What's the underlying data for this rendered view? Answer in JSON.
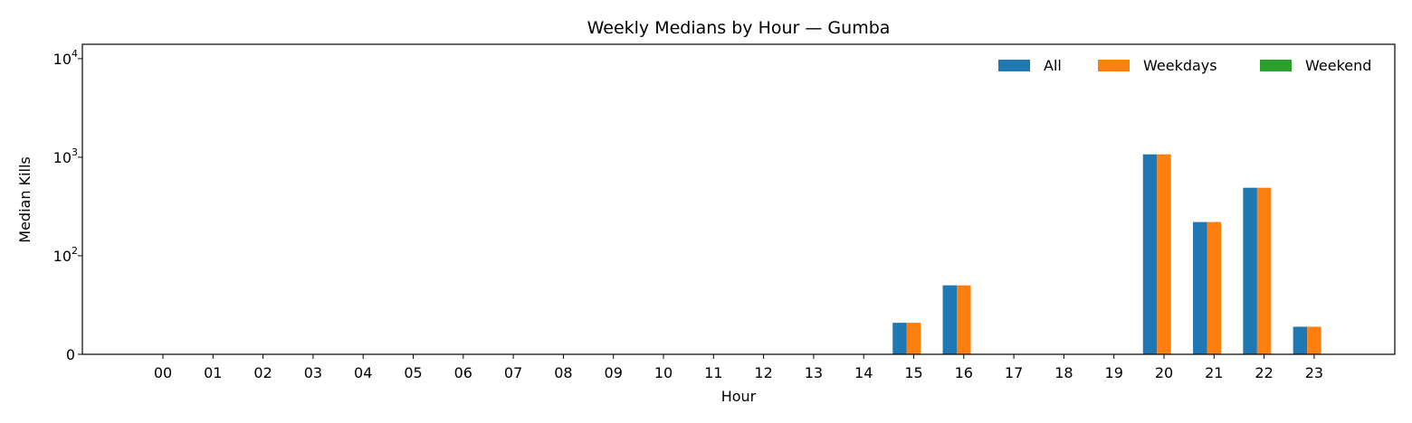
{
  "chart_data": {
    "type": "bar",
    "title": "Weekly Medians by Hour — Gumba",
    "xlabel": "Hour",
    "ylabel": "Median Kills",
    "yscale": "symlog",
    "ylim": [
      0,
      14000
    ],
    "yticks": [
      {
        "value": 0,
        "base": "0",
        "exp": ""
      },
      {
        "value": 100,
        "base": "10",
        "exp": "2"
      },
      {
        "value": 1000,
        "base": "10",
        "exp": "3"
      },
      {
        "value": 10000,
        "base": "10",
        "exp": "4"
      }
    ],
    "categories": [
      "00",
      "01",
      "02",
      "03",
      "04",
      "05",
      "06",
      "07",
      "08",
      "09",
      "10",
      "11",
      "12",
      "13",
      "14",
      "15",
      "16",
      "17",
      "18",
      "19",
      "20",
      "21",
      "22",
      "23"
    ],
    "series": [
      {
        "name": "All",
        "color": "#1f77b4",
        "values": [
          0,
          0,
          0,
          0,
          0,
          0,
          0,
          0,
          0,
          0,
          0,
          0,
          0,
          0,
          0,
          32,
          70,
          0,
          0,
          0,
          1070,
          220,
          490,
          28
        ]
      },
      {
        "name": "Weekdays",
        "color": "#ff7f0e",
        "values": [
          0,
          0,
          0,
          0,
          0,
          0,
          0,
          0,
          0,
          0,
          0,
          0,
          0,
          0,
          0,
          32,
          70,
          0,
          0,
          0,
          1070,
          220,
          490,
          28
        ]
      },
      {
        "name": "Weekend",
        "color": "#2ca02c",
        "values": [
          0,
          0,
          0,
          0,
          0,
          0,
          0,
          0,
          0,
          0,
          0,
          0,
          0,
          0,
          0,
          0,
          0,
          0,
          0,
          0,
          0,
          0,
          0,
          0
        ]
      }
    ],
    "legend_position": "top-right",
    "grid": false
  }
}
